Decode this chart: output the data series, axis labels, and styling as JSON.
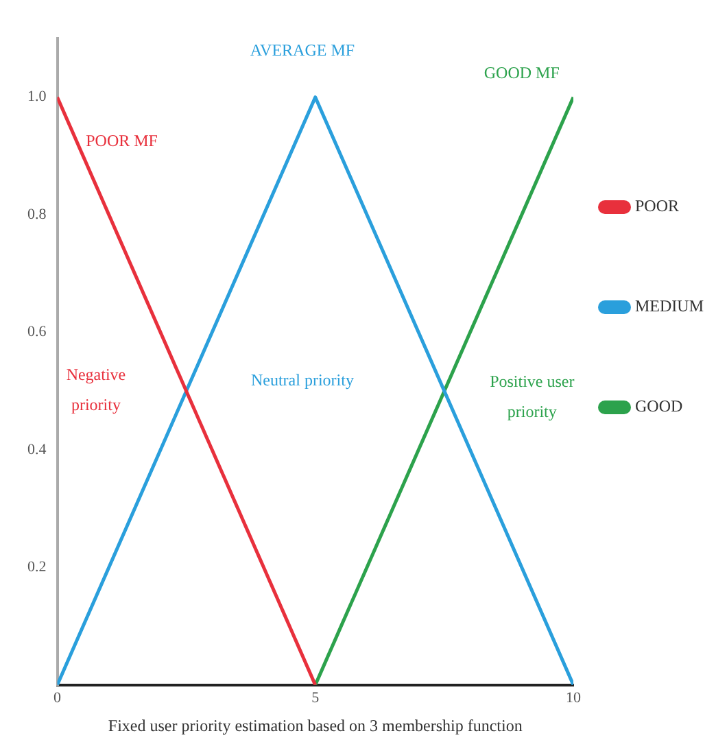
{
  "chart_data": {
    "type": "line",
    "xlabel": "Fixed user priority estimation based on 3 membership function",
    "xlim": [
      0,
      10
    ],
    "xticks": [
      0,
      5,
      10
    ],
    "ylim": [
      0,
      1.1
    ],
    "yticks": [
      {
        "value": 0.2,
        "label": "0.2"
      },
      {
        "value": 0.4,
        "label": "0.4"
      },
      {
        "value": 0.6,
        "label": "0.6"
      },
      {
        "value": 0.8,
        "label": "0.8"
      },
      {
        "value": 1,
        "label": "1.0"
      }
    ],
    "grid": false,
    "legend": "right",
    "marker": "none",
    "line_style": "solid",
    "series": [
      {
        "name": "POOR",
        "color": "#e8303c",
        "x": [
          0,
          5
        ],
        "values": [
          1,
          0
        ]
      },
      {
        "name": "MEDIUM",
        "color": "#2a9fdc",
        "x": [
          0,
          5,
          10
        ],
        "values": [
          0,
          1,
          0
        ]
      },
      {
        "name": "GOOD",
        "color": "#2ca24c",
        "x": [
          5,
          10
        ],
        "values": [
          0,
          1
        ]
      }
    ],
    "annotations": [
      "POOR MF",
      "AVERAGE MF",
      "GOOD MF",
      "Negative priority",
      "Neutral priority",
      "Positive user priority"
    ]
  }
}
